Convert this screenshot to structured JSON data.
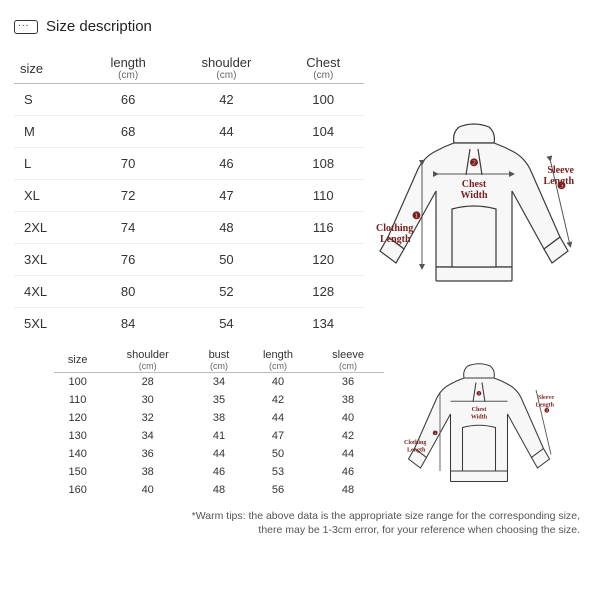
{
  "header": {
    "title": "Size description"
  },
  "table1": {
    "columns": [
      {
        "label": "size",
        "unit": ""
      },
      {
        "label": "length",
        "unit": "(cm)"
      },
      {
        "label": "shoulder",
        "unit": "(cm)"
      },
      {
        "label": "Chest",
        "unit": "(cm)"
      }
    ],
    "rows": [
      [
        "S",
        "66",
        "42",
        "100"
      ],
      [
        "M",
        "68",
        "44",
        "104"
      ],
      [
        "L",
        "70",
        "46",
        "108"
      ],
      [
        "XL",
        "72",
        "47",
        "110"
      ],
      [
        "2XL",
        "74",
        "48",
        "116"
      ],
      [
        "3XL",
        "76",
        "50",
        "120"
      ],
      [
        "4XL",
        "80",
        "52",
        "128"
      ],
      [
        "5XL",
        "84",
        "54",
        "134"
      ]
    ]
  },
  "table2": {
    "columns": [
      {
        "label": "size",
        "unit": ""
      },
      {
        "label": "shoulder",
        "unit": "(cm)"
      },
      {
        "label": "bust",
        "unit": "(cm)"
      },
      {
        "label": "length",
        "unit": "(cm)"
      },
      {
        "label": "sleeve",
        "unit": "(cm)"
      }
    ],
    "rows": [
      [
        "100",
        "28",
        "34",
        "40",
        "36"
      ],
      [
        "110",
        "30",
        "35",
        "42",
        "38"
      ],
      [
        "120",
        "32",
        "38",
        "44",
        "40"
      ],
      [
        "130",
        "34",
        "41",
        "47",
        "42"
      ],
      [
        "140",
        "36",
        "44",
        "50",
        "44"
      ],
      [
        "150",
        "38",
        "46",
        "53",
        "46"
      ],
      [
        "160",
        "40",
        "48",
        "56",
        "48"
      ]
    ]
  },
  "diagram": {
    "label_clothing": "Clothing",
    "label_length": "Length",
    "label_chest": "Chest",
    "label_width": "Width",
    "label_sleeve": "Sleeve",
    "marker1": "❶",
    "marker2": "❷",
    "marker3": "❸",
    "stroke": "#3a3a3a",
    "bg": "#f7f7f7",
    "label_color": "#7a1f1f"
  },
  "tips": {
    "line1": "*Warm tips: the above data is the appropriate size range for the corresponding size,",
    "line2": "there may be 1-3cm error, for your reference when choosing the size."
  }
}
